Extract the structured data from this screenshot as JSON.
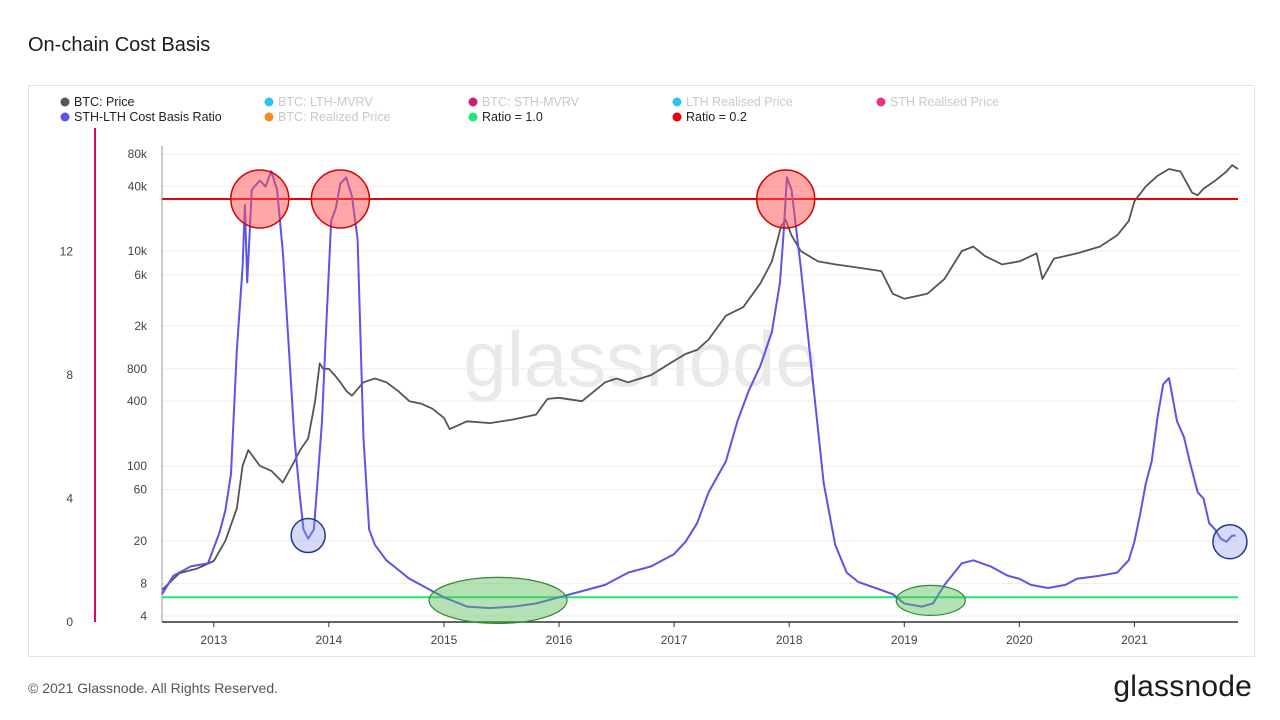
{
  "page": {
    "title": "On-chain Cost Basis",
    "copyright": "© 2021 Glassnode. All Rights Reserved.",
    "brand": "glassnode",
    "watermark": "glassnode"
  },
  "chart_data": {
    "type": "line",
    "title": "",
    "legend": [
      {
        "label": "BTC: Price",
        "color": "#555555",
        "active": true
      },
      {
        "label": "BTC: LTH-MVRV",
        "color": "#2ec4f0",
        "active": false
      },
      {
        "label": "BTC: STH-MVRV",
        "color": "#cc1f75",
        "active": false
      },
      {
        "label": "LTH Realised Price",
        "color": "#2ec4f0",
        "active": false
      },
      {
        "label": "STH Realised Price",
        "color": "#e8318a",
        "active": false
      },
      {
        "label": "STH-LTH Cost Basis Ratio",
        "color": "#5b54e8",
        "active": true
      },
      {
        "label": "BTC: Realized Price",
        "color": "#f58c1f",
        "active": false
      },
      {
        "label": "Ratio = 1.0",
        "color": "#1be873",
        "active": true
      },
      {
        "label": "Ratio = 0.2",
        "color": "#e8000b",
        "active": true
      }
    ],
    "x_axis": {
      "ticks": [
        "2013",
        "2014",
        "2015",
        "2016",
        "2017",
        "2018",
        "2019",
        "2020",
        "2021"
      ],
      "range": [
        2012.55,
        2021.9
      ]
    },
    "y_left_axis": {
      "ticks": [
        "0",
        "4",
        "8",
        "12"
      ],
      "range": [
        0,
        16
      ]
    },
    "y_price_axis": {
      "scale": "log",
      "ticks": [
        "4",
        "8",
        "20",
        "60",
        "100",
        "400",
        "800",
        "2k",
        "6k",
        "10k",
        "40k",
        "80k"
      ]
    },
    "series": [
      {
        "name": "BTC: Price",
        "color": "#555555",
        "x": [
          2012.55,
          2012.7,
          2012.85,
          2013.0,
          2013.1,
          2013.2,
          2013.25,
          2013.3,
          2013.4,
          2013.5,
          2013.6,
          2013.7,
          2013.75,
          2013.82,
          2013.88,
          2013.92,
          2013.95,
          2014.0,
          2014.05,
          2014.1,
          2014.15,
          2014.2,
          2014.3,
          2014.4,
          2014.5,
          2014.6,
          2014.7,
          2014.8,
          2014.9,
          2015.0,
          2015.05,
          2015.2,
          2015.4,
          2015.6,
          2015.8,
          2015.9,
          2016.0,
          2016.2,
          2016.4,
          2016.5,
          2016.6,
          2016.8,
          2017.0,
          2017.1,
          2017.2,
          2017.3,
          2017.45,
          2017.6,
          2017.75,
          2017.85,
          2017.93,
          2017.97,
          2018.02,
          2018.1,
          2018.25,
          2018.4,
          2018.6,
          2018.8,
          2018.9,
          2019.0,
          2019.2,
          2019.35,
          2019.5,
          2019.6,
          2019.7,
          2019.85,
          2020.0,
          2020.15,
          2020.2,
          2020.3,
          2020.5,
          2020.7,
          2020.85,
          2020.95,
          2021.0,
          2021.1,
          2021.2,
          2021.3,
          2021.4,
          2021.5,
          2021.55,
          2021.6,
          2021.7,
          2021.8,
          2021.85,
          2021.9
        ],
        "values": [
          7,
          10,
          11,
          13,
          20,
          40,
          100,
          140,
          100,
          90,
          70,
          110,
          140,
          180,
          400,
          900,
          800,
          800,
          700,
          600,
          500,
          450,
          600,
          650,
          600,
          500,
          400,
          380,
          340,
          280,
          220,
          260,
          250,
          270,
          300,
          420,
          430,
          400,
          600,
          650,
          600,
          700,
          950,
          1100,
          1200,
          1500,
          2500,
          3000,
          5000,
          8000,
          17000,
          19500,
          14000,
          10000,
          8000,
          7500,
          7000,
          6500,
          4000,
          3600,
          4000,
          5500,
          10000,
          11000,
          9000,
          7500,
          8000,
          9500,
          5500,
          8500,
          9500,
          11000,
          14000,
          19000,
          29000,
          40000,
          50000,
          58000,
          55000,
          35000,
          33000,
          38000,
          45000,
          55000,
          63000,
          58000
        ]
      },
      {
        "name": "STH-LTH Cost Basis Ratio",
        "color": "#5b54e8",
        "x": [
          2012.55,
          2012.65,
          2012.8,
          2012.95,
          2013.05,
          2013.1,
          2013.15,
          2013.2,
          2013.25,
          2013.27,
          2013.29,
          2013.33,
          2013.4,
          2013.45,
          2013.5,
          2013.55,
          2013.6,
          2013.65,
          2013.7,
          2013.75,
          2013.78,
          2013.82,
          2013.87,
          2013.9,
          2013.94,
          2013.97,
          2014.02,
          2014.06,
          2014.1,
          2014.15,
          2014.2,
          2014.25,
          2014.3,
          2014.35,
          2014.4,
          2014.5,
          2014.6,
          2014.7,
          2014.8,
          2014.9,
          2015.0,
          2015.2,
          2015.4,
          2015.6,
          2015.8,
          2015.95,
          2016.2,
          2016.4,
          2016.6,
          2016.8,
          2017.0,
          2017.1,
          2017.2,
          2017.3,
          2017.45,
          2017.55,
          2017.65,
          2017.75,
          2017.85,
          2017.92,
          2017.95,
          2017.98,
          2018.02,
          2018.1,
          2018.2,
          2018.3,
          2018.4,
          2018.5,
          2018.6,
          2018.75,
          2018.9,
          2019.0,
          2019.15,
          2019.25,
          2019.35,
          2019.5,
          2019.6,
          2019.75,
          2019.9,
          2020.0,
          2020.1,
          2020.25,
          2020.4,
          2020.5,
          2020.7,
          2020.85,
          2020.95,
          2021.0,
          2021.05,
          2021.1,
          2021.15,
          2021.2,
          2021.25,
          2021.3,
          2021.37,
          2021.43,
          2021.48,
          2021.55,
          2021.6,
          2021.65,
          2021.7,
          2021.75,
          2021.8,
          2021.85,
          2021.88
        ],
        "values": [
          0.9,
          1.5,
          1.8,
          1.9,
          2.9,
          3.6,
          4.8,
          8.8,
          11.5,
          13.5,
          11.0,
          14.0,
          14.3,
          14.1,
          14.6,
          14.0,
          12.0,
          9.0,
          6.0,
          4.0,
          3.0,
          2.7,
          3.0,
          4.5,
          6.5,
          9.0,
          13.0,
          13.4,
          14.2,
          14.4,
          13.8,
          12.4,
          6.0,
          3.0,
          2.5,
          2.0,
          1.7,
          1.4,
          1.2,
          1.0,
          0.8,
          0.5,
          0.45,
          0.5,
          0.6,
          0.75,
          1.0,
          1.2,
          1.6,
          1.8,
          2.2,
          2.6,
          3.2,
          4.2,
          5.2,
          6.5,
          7.5,
          8.3,
          9.4,
          11.0,
          12.5,
          14.4,
          14.0,
          11.5,
          8.0,
          4.5,
          2.5,
          1.6,
          1.3,
          1.1,
          0.9,
          0.6,
          0.5,
          0.6,
          1.2,
          1.9,
          2.0,
          1.8,
          1.5,
          1.4,
          1.2,
          1.1,
          1.2,
          1.4,
          1.5,
          1.6,
          2.0,
          2.6,
          3.5,
          4.5,
          5.2,
          6.6,
          7.7,
          7.9,
          6.5,
          6.0,
          5.2,
          4.2,
          4.0,
          3.2,
          3.0,
          2.7,
          2.6,
          2.8,
          2.8
        ]
      }
    ],
    "thresholds": [
      {
        "label": "Ratio = 1.0",
        "value": 0.8,
        "color": "#1be873"
      },
      {
        "label": "Ratio = 0.2",
        "value": 13.7,
        "color": "#e8000b"
      }
    ],
    "annotations": [
      {
        "kind": "red-circle",
        "x": 2013.4,
        "y": 13.7
      },
      {
        "kind": "red-circle",
        "x": 2014.1,
        "y": 13.7
      },
      {
        "kind": "red-circle",
        "x": 2017.97,
        "y": 13.7
      },
      {
        "kind": "blue-circle",
        "x": 2013.82,
        "y": 2.8
      },
      {
        "kind": "blue-circle",
        "x": 2021.83,
        "y": 2.6
      },
      {
        "kind": "green-ellipse",
        "x": 2015.47,
        "y": 0.7,
        "width_years": 1.2
      },
      {
        "kind": "green-ellipse",
        "x": 2019.23,
        "y": 0.7,
        "width_years": 0.6
      }
    ]
  }
}
